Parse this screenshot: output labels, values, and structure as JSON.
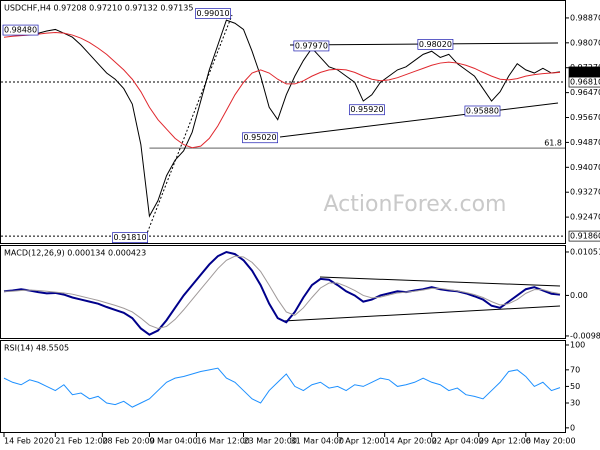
{
  "chart_data": [
    {
      "type": "line",
      "title": "USDCHF,H4  0.97208 0.97210 0.97132 0.97135",
      "watermark": "ActionForex.com",
      "xlim": [
        0,
        65
      ],
      "ylim": [
        0.91638,
        0.99382
      ],
      "yticks": [
        {
          "value": 0.9887,
          "label": "0.98870"
        },
        {
          "value": 0.9807,
          "label": "0.98070"
        },
        {
          "value": 0.9727,
          "label": "0.97270"
        },
        {
          "value": 0.9647,
          "label": "0.96470"
        },
        {
          "value": 0.9567,
          "label": "0.95670"
        },
        {
          "value": 0.9487,
          "label": "0.94870"
        },
        {
          "value": 0.9407,
          "label": "0.94070"
        },
        {
          "value": 0.9327,
          "label": "0.93270"
        },
        {
          "value": 0.9247,
          "label": "0.92470"
        }
      ],
      "series": [
        {
          "name": "USDCHF",
          "color": "#000000",
          "values": [
            0.984,
            0.9846,
            0.9848,
            0.9842,
            0.9838,
            0.9845,
            0.985,
            0.9838,
            0.9825,
            0.98,
            0.977,
            0.974,
            0.971,
            0.969,
            0.966,
            0.961,
            0.948,
            0.925,
            0.93,
            0.938,
            0.943,
            0.946,
            0.952,
            0.962,
            0.972,
            0.98,
            0.988,
            0.987,
            0.985,
            0.978,
            0.97,
            0.96,
            0.956,
            0.964,
            0.97,
            0.975,
            0.979,
            0.976,
            0.973,
            0.972,
            0.97,
            0.968,
            0.962,
            0.964,
            0.968,
            0.97,
            0.972,
            0.973,
            0.975,
            0.977,
            0.978,
            0.976,
            0.977,
            0.974,
            0.972,
            0.97,
            0.966,
            0.962,
            0.965,
            0.97,
            0.974,
            0.972,
            0.971,
            0.9725,
            0.971,
            0.97135
          ]
        },
        {
          "name": "SMA",
          "color": "#e0282e",
          "values": [
            0.9825,
            0.9828,
            0.983,
            0.9832,
            0.9835,
            0.9838,
            0.984,
            0.9838,
            0.9832,
            0.9822,
            0.9808,
            0.979,
            0.977,
            0.9745,
            0.972,
            0.969,
            0.965,
            0.96,
            0.956,
            0.953,
            0.95,
            0.948,
            0.947,
            0.9475,
            0.95,
            0.954,
            0.959,
            0.964,
            0.968,
            0.971,
            0.972,
            0.971,
            0.969,
            0.9675,
            0.9675,
            0.9685,
            0.97,
            0.9712,
            0.972,
            0.9722,
            0.972,
            0.9712,
            0.97,
            0.969,
            0.9685,
            0.9688,
            0.9695,
            0.9705,
            0.9715,
            0.9725,
            0.9735,
            0.9742,
            0.9745,
            0.9742,
            0.9735,
            0.9725,
            0.9712,
            0.97,
            0.969,
            0.9688,
            0.9692,
            0.97,
            0.9705,
            0.9708,
            0.971,
            0.9712
          ]
        }
      ],
      "annotations": [
        {
          "x": 0,
          "value": 0.9848,
          "label": "0.98480"
        },
        {
          "x": 22.5,
          "value": 0.9901,
          "label": "0.99010"
        },
        {
          "x": 34,
          "value": 0.9797,
          "label": "0.97970"
        },
        {
          "x": 48.5,
          "value": 0.9802,
          "label": "0.98020"
        },
        {
          "x": 28,
          "value": 0.9502,
          "label": "0.95020"
        },
        {
          "x": 40.5,
          "value": 0.9592,
          "label": "0.95920"
        },
        {
          "x": 54,
          "value": 0.9588,
          "label": "0.95880"
        },
        {
          "x": 12.8,
          "value": 0.9181,
          "label": "0.91810"
        }
      ],
      "levels": [
        {
          "value": 0.9681,
          "label": "0.96810"
        },
        {
          "value": 0.9186,
          "label": "0.91860"
        }
      ],
      "fib_level": {
        "value": 0.9469,
        "label": "61.8"
      },
      "last_price": {
        "value": 0.97135,
        "label": "0.97135"
      }
    },
    {
      "type": "line",
      "title": "MACD(12,26,9) 0.000134 0.000423",
      "xlim": [
        0,
        65
      ],
      "ylim": [
        -0.0103,
        0.0122
      ],
      "yticks": [
        -0.009804,
        {
          "value": 0,
          "label": "0.00"
        },
        0.010513
      ],
      "series": [
        {
          "name": "MACD",
          "color": "#00008b",
          "values": [
            0.001,
            0.0012,
            0.0015,
            0.0012,
            0.0008,
            0.0005,
            0.0006,
            0.0002,
            -0.0005,
            -0.001,
            -0.0015,
            -0.002,
            -0.0028,
            -0.0035,
            -0.0042,
            -0.0055,
            -0.008,
            -0.0095,
            -0.0085,
            -0.006,
            -0.003,
            0,
            0.0025,
            0.005,
            0.0075,
            0.0095,
            0.0105,
            0.01,
            0.0085,
            0.006,
            0.0025,
            -0.002,
            -0.0055,
            -0.0065,
            -0.004,
            -0.0005,
            0.0025,
            0.004,
            0.0038,
            0.0025,
            0.001,
            0,
            -0.0015,
            -0.001,
            0,
            0.0005,
            0.001,
            0.0008,
            0.0012,
            0.0015,
            0.002,
            0.0015,
            0.0012,
            0.001,
            0.0005,
            -0.0002,
            -0.001,
            -0.0025,
            -0.003,
            -0.0015,
            0,
            0.0015,
            0.002,
            0.0012,
            0.0004,
            0.0002
          ]
        },
        {
          "name": "Signal",
          "color": "#a09a9a",
          "values": [
            0.001,
            0.001,
            0.0012,
            0.0013,
            0.0012,
            0.001,
            0.0008,
            0.0006,
            0.0003,
            -0.0002,
            -0.0007,
            -0.0012,
            -0.0018,
            -0.0024,
            -0.0031,
            -0.004,
            -0.0055,
            -0.0072,
            -0.008,
            -0.0075,
            -0.0058,
            -0.0035,
            -0.001,
            0.0015,
            0.004,
            0.0065,
            0.0085,
            0.0095,
            0.0093,
            0.008,
            0.0058,
            0.0025,
            -0.001,
            -0.004,
            -0.0048,
            -0.003,
            -0.0005,
            0.0018,
            0.003,
            0.003,
            0.0022,
            0.0012,
            0,
            -0.0006,
            -0.0004,
            0.0001,
            0.0006,
            0.0008,
            0.001,
            0.0013,
            0.0017,
            0.0017,
            0.0014,
            0.0011,
            0.0007,
            0.0002,
            -0.0005,
            -0.0015,
            -0.0023,
            -0.002,
            -0.001,
            0.0005,
            0.0014,
            0.0014,
            0.0008,
            0.0004
          ]
        }
      ]
    },
    {
      "type": "line",
      "title": "RSI(14) 48.5505",
      "xlim": [
        0,
        65
      ],
      "ylim": [
        -5,
        106
      ],
      "yticks": [
        0,
        30,
        50,
        70,
        100
      ],
      "xticks": [
        {
          "value": 0,
          "label": "14 Feb 2020"
        },
        {
          "value": 6,
          "label": "21 Feb 12:00"
        },
        {
          "value": 11.5,
          "label": "28 Feb 20:00"
        },
        {
          "value": 17,
          "label": "9 Mar 04:00"
        },
        {
          "value": 22.5,
          "label": "16 Mar 12:00"
        },
        {
          "value": 28,
          "label": "23 Mar 20:00"
        },
        {
          "value": 33.5,
          "label": "31 Mar 04:00"
        },
        {
          "value": 39,
          "label": "7 Apr 12:00"
        },
        {
          "value": 44.5,
          "label": "14 Apr 20:00"
        },
        {
          "value": 50,
          "label": "22 Apr 04:00"
        },
        {
          "value": 55.5,
          "label": "29 Apr 12:00"
        },
        {
          "value": 61,
          "label": "6 May 20:00"
        }
      ],
      "series": [
        {
          "name": "RSI",
          "color": "#1e90ff",
          "values": [
            60,
            55,
            52,
            58,
            55,
            50,
            45,
            52,
            40,
            42,
            35,
            38,
            30,
            28,
            32,
            25,
            30,
            35,
            45,
            55,
            60,
            62,
            65,
            68,
            70,
            72,
            60,
            55,
            45,
            35,
            30,
            45,
            55,
            65,
            50,
            45,
            52,
            55,
            48,
            50,
            45,
            52,
            50,
            55,
            60,
            58,
            50,
            52,
            55,
            60,
            55,
            52,
            45,
            48,
            40,
            38,
            35,
            45,
            55,
            68,
            70,
            62,
            50,
            55,
            45,
            48.5505
          ]
        }
      ]
    }
  ]
}
